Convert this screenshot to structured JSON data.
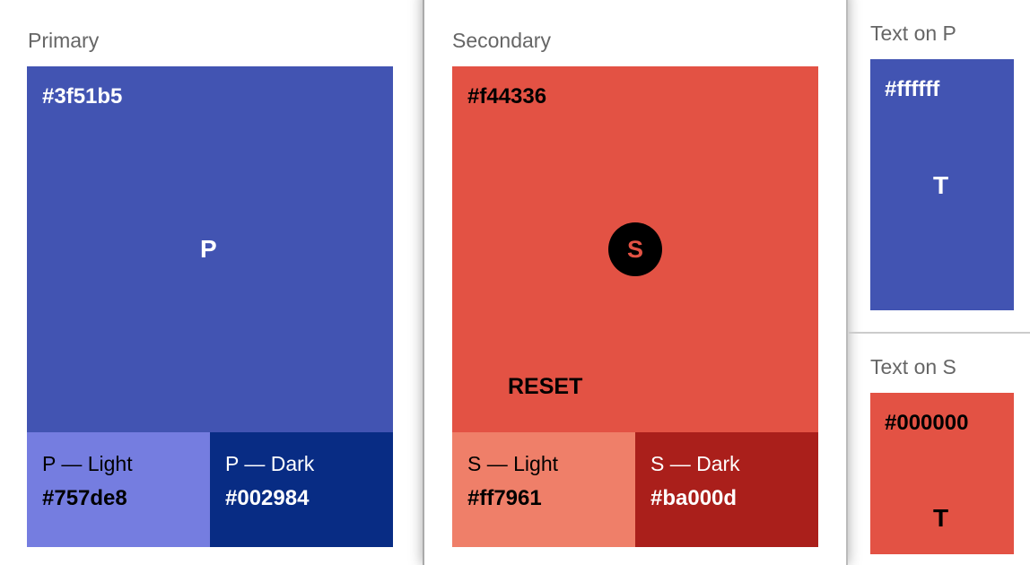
{
  "primary": {
    "label": "Primary",
    "hex": "#3f51b5",
    "letter": "P",
    "color": "#4254b2",
    "light": {
      "label": "P — Light",
      "hex": "#757de8",
      "color": "#757de0"
    },
    "dark": {
      "label": "P — Dark",
      "hex": "#002984",
      "color": "#082c84"
    }
  },
  "secondary": {
    "label": "Secondary",
    "hex": "#f44336",
    "letter": "S",
    "color": "#e35244",
    "reset_label": "RESET",
    "light": {
      "label": "S — Light",
      "hex": "#ff7961",
      "color": "#ef7f69"
    },
    "dark": {
      "label": "S — Dark",
      "hex": "#ba000d",
      "color": "#aa1f1b"
    }
  },
  "text_on_p": {
    "label": "Text on P",
    "hex": "#ffffff",
    "letter": "T"
  },
  "text_on_s": {
    "label": "Text on S",
    "hex": "#000000",
    "letter": "T"
  }
}
